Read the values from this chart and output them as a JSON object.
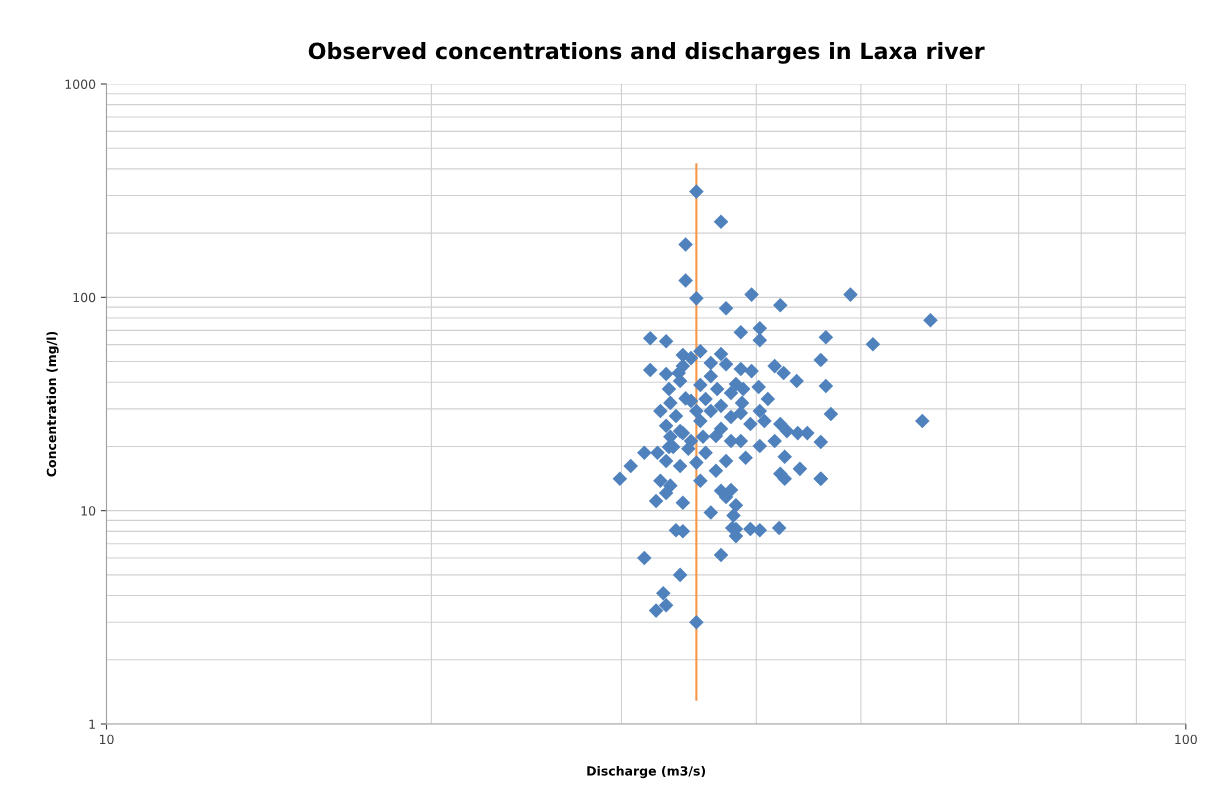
{
  "chart_data": {
    "type": "scatter",
    "title": "Observed concentrations and discharges in Laxa river",
    "xlabel": "Discharge (m3/s)",
    "ylabel": "Concentration (mg/l)",
    "log": "xy",
    "xlim": [
      10,
      100
    ],
    "ylim": [
      1,
      1000
    ],
    "xticks": [
      10,
      100
    ],
    "yticks": [
      1,
      10,
      100,
      1000
    ],
    "grid": true,
    "marker": "diamond",
    "series": [
      {
        "color": "#4f81bd",
        "x": [
          35.2,
          37.1,
          34.4,
          34.4,
          35.2,
          37.5,
          39.6,
          42.1,
          48.9,
          58.0,
          51.3,
          57.0,
          31.9,
          33.0,
          31.9,
          33.0,
          34.2,
          35.5,
          37.1,
          38.7,
          40.3,
          40.3,
          46.4,
          45.9,
          46.4,
          46.9,
          45.9,
          45.9,
          34.2,
          33.9,
          34.8,
          37.5,
          36.3,
          38.7,
          39.6,
          38.3,
          38.9,
          37.9,
          40.2,
          41.6,
          42.4,
          43.6,
          41.0,
          40.3,
          38.8,
          38.7,
          36.8,
          35.5,
          35.9,
          36.3,
          37.1,
          37.9,
          39.5,
          40.7,
          42.1,
          42.7,
          43.7,
          44.6,
          41.6,
          40.3,
          42.5,
          42.1,
          42.5,
          43.9,
          38.7,
          39.1,
          37.1,
          36.7,
          37.5,
          35.9,
          34.8,
          34.0,
          33.7,
          33.3,
          33.2,
          32.6,
          33.0,
          33.3,
          34.2,
          34.6,
          35.2,
          35.5,
          34.0,
          33.2,
          33.0,
          32.6,
          33.3,
          32.4,
          31.5,
          30.6,
          29.9,
          33.0,
          32.3,
          34.2,
          36.3,
          33.7,
          37.1,
          37.5,
          37.9,
          38.3,
          38.0,
          38.1,
          38.3,
          38.3,
          39.5,
          40.3,
          37.9,
          36.7,
          35.5,
          36.3,
          34.0,
          33.5,
          35.2,
          35.7,
          34.8,
          34.4,
          31.5,
          34.2,
          37.1,
          34.0,
          32.8,
          33.0,
          32.3,
          35.2,
          42.0,
          45.9
        ],
        "values": [
          313,
          226,
          177,
          120,
          98.9,
          88.8,
          103,
          91.8,
          103,
          78.1,
          60.3,
          26.3,
          64.3,
          62.3,
          45.6,
          43.7,
          53.6,
          55.9,
          54.2,
          68.6,
          71.6,
          63.0,
          65.0,
          50.8,
          38.4,
          28.4,
          21.0,
          14.1,
          47.6,
          44.2,
          51.9,
          48.6,
          49.2,
          46.1,
          45.1,
          39.2,
          37.2,
          35.6,
          38.0,
          47.6,
          44.2,
          40.5,
          33.4,
          29.3,
          32.0,
          28.7,
          37.2,
          38.8,
          33.4,
          29.3,
          31.0,
          27.5,
          25.5,
          26.3,
          25.5,
          23.6,
          23.1,
          23.1,
          21.2,
          20.1,
          17.9,
          14.9,
          14.1,
          15.7,
          21.2,
          17.7,
          24.2,
          22.4,
          17.1,
          18.7,
          21.2,
          23.6,
          27.8,
          32.0,
          37.2,
          29.3,
          25.0,
          22.2,
          23.1,
          19.5,
          16.8,
          13.8,
          16.2,
          19.9,
          17.1,
          13.8,
          13.1,
          18.7,
          18.7,
          16.2,
          14.1,
          12.1,
          11.1,
          10.9,
          9.8,
          8.1,
          12.4,
          11.6,
          12.5,
          10.6,
          8.3,
          9.5,
          8.2,
          7.6,
          8.2,
          8.1,
          21.2,
          15.4,
          26.3,
          42.7,
          40.5,
          19.9,
          29.3,
          22.2,
          32.7,
          33.6,
          6.0,
          8.0,
          6.2,
          5.0,
          4.1,
          3.6,
          3.4,
          3.0,
          8.3,
          14.1
        ]
      },
      {
        "type": "line",
        "color": "#f79646",
        "marker": "none",
        "x": [
          35.2,
          35.2
        ],
        "values": [
          1.3,
          420
        ]
      }
    ]
  }
}
